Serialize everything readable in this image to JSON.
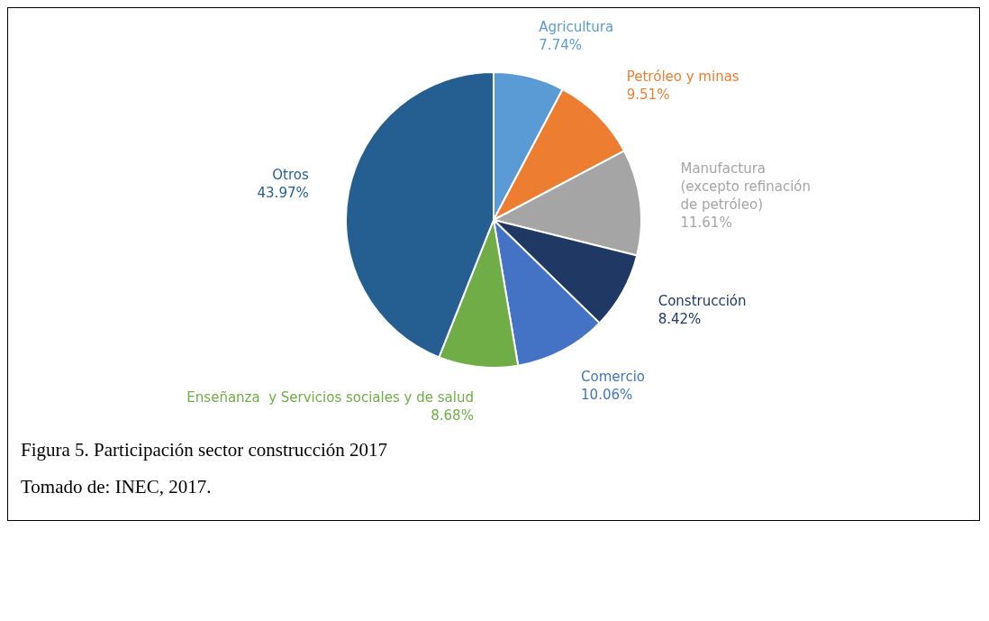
{
  "chart_data": {
    "type": "pie",
    "title": "Figura 5. Participación sector construcción 2017",
    "categories": [
      "Agricultura",
      "Petróleo y minas",
      "Manufactura (excepto refinación de petróleo)",
      "Construcción",
      "Comercio",
      "Enseñanza  y Servicios sociales y de salud",
      "Otros"
    ],
    "values": [
      7.74,
      9.51,
      11.61,
      8.42,
      10.06,
      8.68,
      43.97
    ],
    "value_labels": [
      "7.74%",
      "9.51%",
      "11.61%",
      "8.42%",
      "10.06%",
      "8.68%",
      "43.97%"
    ],
    "colors": [
      "#5b9bd5",
      "#ed7d31",
      "#a5a5a5",
      "#1f3864",
      "#4472c4",
      "#70ad47",
      "#255e91"
    ],
    "annotations": [
      "Tomado de: INEC, 2017."
    ]
  }
}
